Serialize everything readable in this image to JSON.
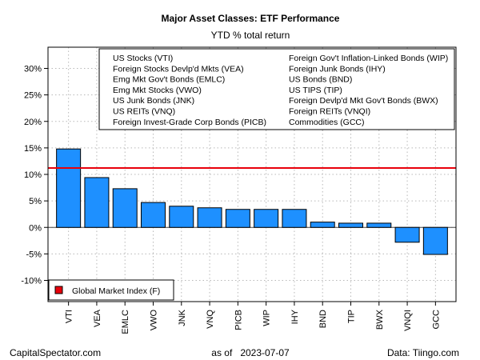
{
  "chart_data": {
    "type": "bar",
    "title": "Major Asset Classes: ETF Performance",
    "subtitle": "YTD % total return",
    "categories": [
      "VTI",
      "VEA",
      "EMLC",
      "VWO",
      "JNK",
      "VNQ",
      "PICB",
      "WIP",
      "IHY",
      "BND",
      "TIP",
      "BWX",
      "VNQI",
      "GCC"
    ],
    "values": [
      14.8,
      9.4,
      7.3,
      4.7,
      4.0,
      3.7,
      3.4,
      3.4,
      3.4,
      1.0,
      0.8,
      0.8,
      -2.8,
      -5.1
    ],
    "reference_line": {
      "label": "Global Market Index (F)",
      "value": 11.2,
      "color": "#e8000b"
    },
    "ylim": [
      -14,
      34
    ],
    "yticks": [
      -10,
      -5,
      0,
      5,
      10,
      15,
      20,
      25,
      30
    ],
    "ytick_labels": [
      "-10%",
      "-5%",
      "0%",
      "5%",
      "10%",
      "15%",
      "20%",
      "25%",
      "30%"
    ],
    "bar_color": "#1e90ff",
    "grid": true,
    "legend_left": [
      "US Stocks (VTI)",
      "Foreign Stocks Devlp'd Mkts (VEA)",
      "Emg Mkt Gov't Bonds (EMLC)",
      "Emg Mkt Stocks (VWO)",
      "US Junk Bonds (JNK)",
      "US REITs (VNQ)",
      "Foreign Invest-Grade Corp Bonds (PICB)"
    ],
    "legend_right": [
      "Foreign Gov't Inflation-Linked Bonds (WIP)",
      "Foreign Junk Bonds (IHY)",
      "US Bonds (BND)",
      "US TIPS (TIP)",
      "Foreign Devlp'd Mkt Gov't Bonds (BWX)",
      "Foreign REITs (VNQI)",
      "Commodities (GCC)"
    ]
  },
  "footer": {
    "left": "CapitalSpectator.com",
    "center": "as of   2023-07-07",
    "right": "Data: Tiingo.com"
  }
}
